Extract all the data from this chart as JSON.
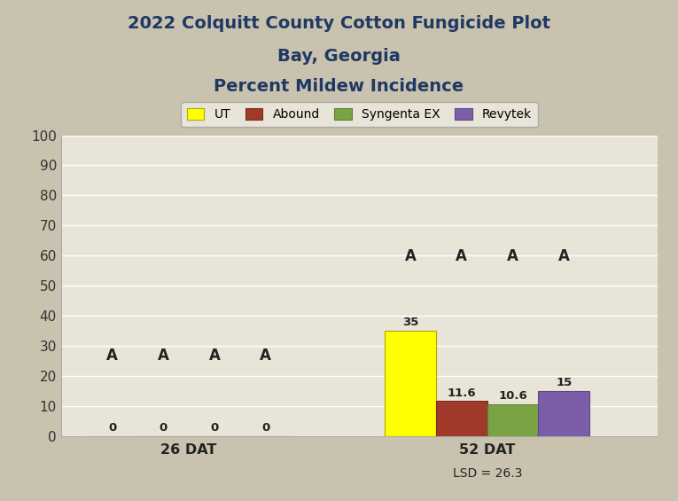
{
  "title_line1": "2022 Colquitt County Cotton Fungicide Plot",
  "title_line2": "Bay, Georgia",
  "title_line3": "Percent Mildew Incidence",
  "title_color": "#1F3864",
  "background_color": "#C8C2AE",
  "plot_bg_color": "#E8E4D8",
  "groups": [
    "26 DAT",
    "52 DAT"
  ],
  "group_subtitles": [
    "",
    "LSD = 26.3"
  ],
  "series": [
    "UT",
    "Abound",
    "Syngenta EX",
    "Revytek"
  ],
  "colors": [
    "#FFFF00",
    "#A0392A",
    "#7AA444",
    "#7B5EA7"
  ],
  "bar_edge_colors": [
    "#AAAA00",
    "#7A2D1E",
    "#5C8035",
    "#5E4A82"
  ],
  "values_26DAT": [
    0,
    0,
    0,
    0
  ],
  "values_52DAT": [
    35.0,
    11.6,
    10.6,
    15
  ],
  "letter_26DAT": [
    "A",
    "A",
    "A",
    "A"
  ],
  "letter_52DAT": [
    "A",
    "A",
    "A",
    "A"
  ],
  "ylim": [
    0,
    100
  ],
  "yticks": [
    0,
    10,
    20,
    30,
    40,
    50,
    60,
    70,
    80,
    90,
    100
  ],
  "bar_width": 0.12,
  "legend_colors": [
    "#FFFF00",
    "#A0392A",
    "#7AA444",
    "#7B5EA7"
  ],
  "legend_edge_colors": [
    "#AAAA00",
    "#7A2D1E",
    "#5C8035",
    "#5E4A82"
  ],
  "group_centers": [
    0.35,
    1.05
  ],
  "xlim": [
    0.05,
    1.45
  ]
}
